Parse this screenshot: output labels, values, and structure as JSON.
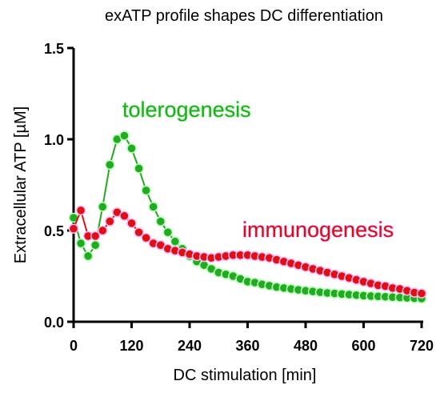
{
  "chart_data": {
    "type": "line",
    "title": "exATP profile shapes DC differentiation",
    "xlabel": "DC stimulation [min]",
    "ylabel": "Extracellular ATP [µM]",
    "xlim": [
      0,
      720
    ],
    "ylim": [
      0,
      1.5
    ],
    "xticks": [
      "0",
      "120",
      "240",
      "360",
      "480",
      "600",
      "720"
    ],
    "yticks": [
      "0.0",
      "0.5",
      "1.0",
      "1.5"
    ],
    "grid": false,
    "legend": "none",
    "series": [
      {
        "name": "tolerogenesis",
        "color": "#22aa22",
        "x": [
          0,
          15,
          30,
          45,
          60,
          75,
          90,
          105,
          120,
          135,
          150,
          165,
          180,
          195,
          210,
          225,
          240,
          255,
          270,
          285,
          300,
          315,
          330,
          345,
          360,
          375,
          390,
          405,
          420,
          435,
          450,
          465,
          480,
          495,
          510,
          525,
          540,
          555,
          570,
          585,
          600,
          615,
          630,
          645,
          660,
          675,
          690,
          705,
          720
        ],
        "y": [
          0.57,
          0.43,
          0.36,
          0.42,
          0.63,
          0.86,
          1.0,
          1.02,
          0.95,
          0.84,
          0.72,
          0.63,
          0.55,
          0.49,
          0.44,
          0.4,
          0.36,
          0.33,
          0.31,
          0.29,
          0.27,
          0.26,
          0.25,
          0.235,
          0.22,
          0.215,
          0.205,
          0.198,
          0.19,
          0.185,
          0.18,
          0.175,
          0.17,
          0.166,
          0.162,
          0.158,
          0.155,
          0.152,
          0.149,
          0.146,
          0.143,
          0.141,
          0.139,
          0.137,
          0.135,
          0.133,
          0.131,
          0.129,
          0.127
        ]
      },
      {
        "name": "immunogenesis",
        "color": "#dd1111",
        "x": [
          0,
          15,
          30,
          45,
          60,
          75,
          90,
          105,
          120,
          135,
          150,
          165,
          180,
          195,
          210,
          225,
          240,
          255,
          270,
          285,
          300,
          315,
          330,
          345,
          360,
          375,
          390,
          405,
          420,
          435,
          450,
          465,
          480,
          495,
          510,
          525,
          540,
          555,
          570,
          585,
          600,
          615,
          630,
          645,
          660,
          675,
          690,
          705,
          720
        ],
        "y": [
          0.51,
          0.61,
          0.47,
          0.47,
          0.5,
          0.55,
          0.6,
          0.58,
          0.54,
          0.49,
          0.46,
          0.43,
          0.42,
          0.4,
          0.39,
          0.38,
          0.37,
          0.36,
          0.355,
          0.35,
          0.355,
          0.36,
          0.365,
          0.365,
          0.365,
          0.36,
          0.355,
          0.35,
          0.34,
          0.33,
          0.32,
          0.31,
          0.3,
          0.29,
          0.28,
          0.27,
          0.26,
          0.25,
          0.24,
          0.23,
          0.22,
          0.21,
          0.2,
          0.195,
          0.185,
          0.18,
          0.17,
          0.16,
          0.155
        ]
      }
    ]
  }
}
